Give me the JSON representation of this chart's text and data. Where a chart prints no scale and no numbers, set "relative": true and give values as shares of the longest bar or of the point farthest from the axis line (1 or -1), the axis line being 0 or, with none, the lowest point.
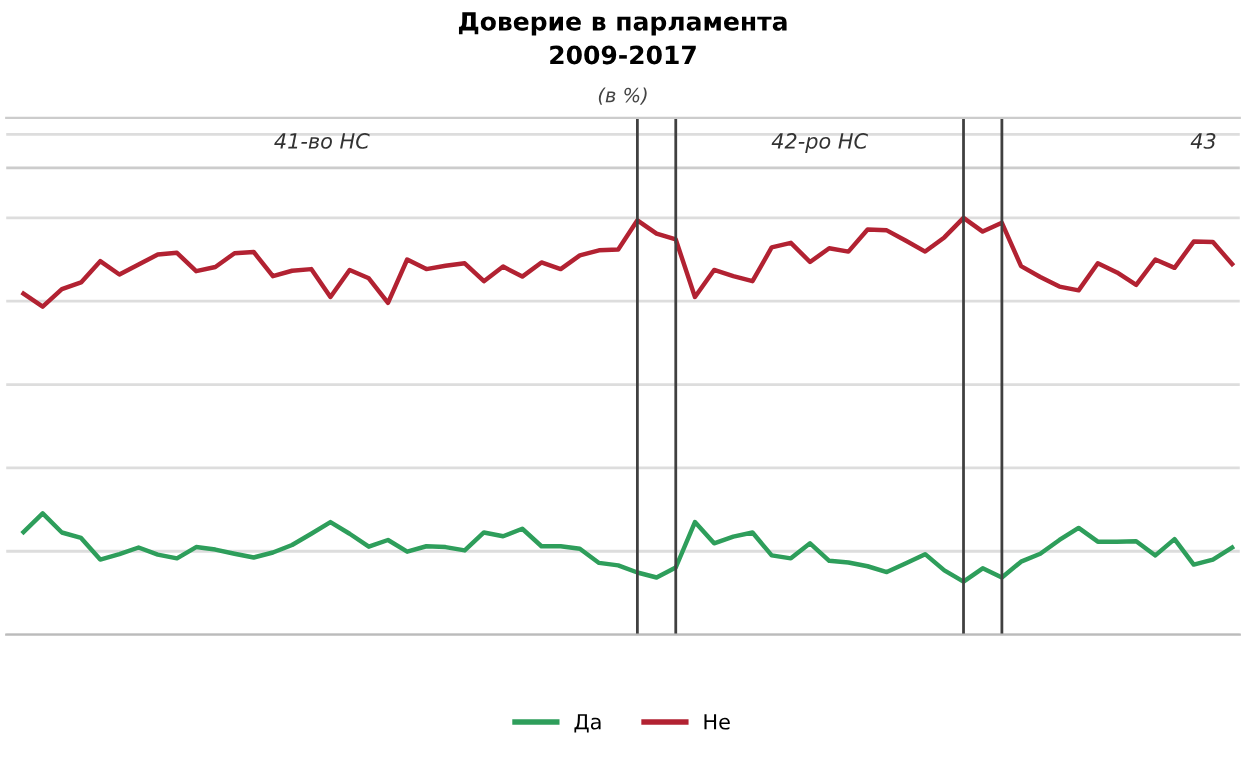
{
  "chart_data": {
    "type": "line",
    "title": "Доверие в парламента\n2009-2017",
    "subtitle": "(в %)",
    "relative": true,
    "grid": true,
    "legend": "bottom",
    "marker": "none",
    "line_style": "solid",
    "categories": [
      null,
      null,
      null,
      null,
      null,
      null,
      null,
      null,
      null,
      null,
      null,
      null,
      null,
      null,
      null,
      null,
      null,
      null,
      null,
      null,
      null,
      null,
      null,
      null,
      null,
      null,
      null,
      null,
      null,
      null,
      null,
      null,
      null,
      null,
      null,
      null,
      null,
      null,
      null,
      null,
      null,
      null,
      null,
      null,
      null,
      null,
      null,
      null,
      null,
      null,
      null,
      null,
      null,
      null,
      null,
      null,
      null,
      null,
      null,
      null,
      null,
      null,
      null,
      null
    ],
    "series": [
      {
        "name": "Да",
        "color": "#2e9e5b",
        "values": [
          0.246,
          0.291,
          0.245,
          0.232,
          0.18,
          0.193,
          0.209,
          0.192,
          0.183,
          0.21,
          0.204,
          0.194,
          0.185,
          0.197,
          0.215,
          0.242,
          0.27,
          0.242,
          0.211,
          0.227,
          0.199,
          0.212,
          0.21,
          0.202,
          0.245,
          0.236,
          0.254,
          0.212,
          0.212,
          0.206,
          0.172,
          0.166,
          0.149,
          0.137,
          0.161,
          0.27,
          0.219,
          0.235,
          0.245,
          0.19,
          0.183,
          0.219,
          0.177,
          0.173,
          0.164,
          0.15,
          0.171,
          0.193,
          0.154,
          0.127,
          0.159,
          0.137,
          0.175,
          0.194,
          0.227,
          0.256,
          0.223,
          0.223,
          0.224,
          0.19,
          0.229,
          0.168,
          0.18,
          0.209
        ]
      },
      {
        "name": "Не",
        "color": "#b22232",
        "values": [
          0.818,
          0.787,
          0.829,
          0.845,
          0.896,
          0.864,
          0.888,
          0.912,
          0.916,
          0.872,
          0.882,
          0.915,
          0.918,
          0.86,
          0.873,
          0.877,
          0.81,
          0.875,
          0.855,
          0.796,
          0.9,
          0.877,
          0.885,
          0.891,
          0.848,
          0.883,
          0.859,
          0.893,
          0.877,
          0.91,
          0.922,
          0.924,
          0.994,
          0.962,
          0.948,
          0.81,
          0.875,
          0.86,
          0.848,
          0.929,
          0.94,
          0.894,
          0.927,
          0.919,
          0.972,
          0.97,
          0.945,
          0.919,
          0.953,
          1,
          0.967,
          0.988,
          0.884,
          0.858,
          0.835,
          0.826,
          0.891,
          0.869,
          0.839,
          0.9,
          0.88,
          0.943,
          0.942,
          0.889
        ]
      }
    ],
    "annotations": [
      "41-во НС",
      "42-ро НС",
      "43"
    ]
  }
}
